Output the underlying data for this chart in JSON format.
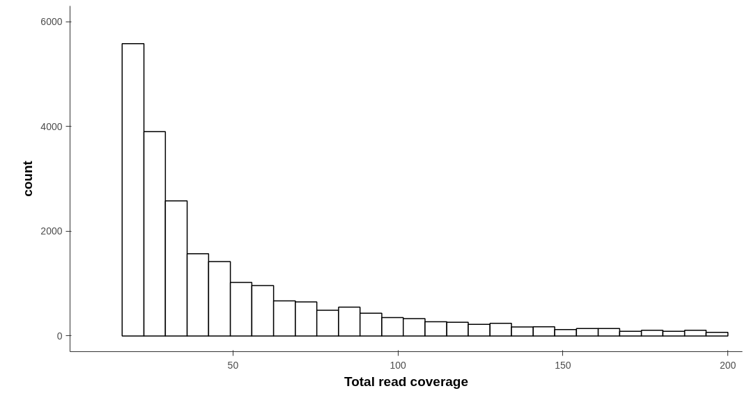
{
  "chart_data": {
    "type": "histogram",
    "xlabel": "Total read coverage",
    "ylabel": "count",
    "bins": [
      16.4,
      23.0,
      29.5,
      36.1,
      42.6,
      49.2,
      55.7,
      62.3,
      68.9,
      75.4,
      82.0,
      88.5,
      95.1,
      101.6,
      108.2,
      114.8,
      121.3,
      127.9,
      134.4,
      141.0,
      147.5,
      154.1,
      160.7,
      167.2,
      173.8,
      180.3,
      186.9,
      193.4,
      200.0
    ],
    "values": [
      5580,
      3900,
      2580,
      1570,
      1420,
      1020,
      960,
      670,
      650,
      490,
      550,
      435,
      350,
      330,
      270,
      260,
      220,
      240,
      170,
      175,
      120,
      140,
      140,
      90,
      110,
      90,
      110,
      70
    ],
    "color": "#ffffff",
    "xlim": [
      0.6,
      204.4
    ],
    "ylim": [
      -300,
      6300
    ],
    "xticks": [
      50,
      100,
      150,
      200
    ],
    "yticks": [
      0,
      2000,
      4000,
      6000
    ],
    "grid": false
  }
}
